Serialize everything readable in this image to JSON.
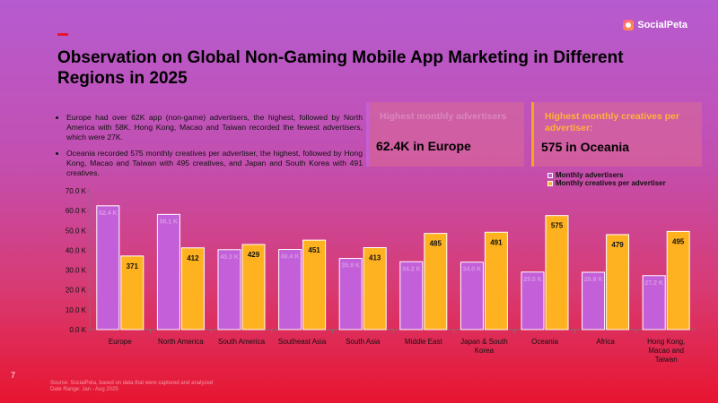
{
  "brand": {
    "name": "SocialPeta"
  },
  "title": "Observation on Global Non-Gaming Mobile App Marketing in Different Regions in 2025",
  "bullets": [
    "Europe had over 62K app (non-game) advertisers, the highest, followed by North America with 58K. Hong Kong, Macao and Taiwan recorded the fewest advertisers, which were 27K.",
    "Oceania recorded 575 monthly creatives per advertiser, the highest, followed by Hong Kong, Macao and Taiwan with 495 creatives, and Japan and South Korea with 491 creatives."
  ],
  "cards": [
    {
      "label": "Highest monthly advertisers",
      "value": "62.4K in Europe"
    },
    {
      "label": "Highest monthly creatives per advertiser:",
      "value": "575 in Oceania"
    }
  ],
  "legend": [
    "Monthly advertisers",
    "Monthly creatives per advertiser"
  ],
  "colors": {
    "advertisers": "#c35fd8",
    "creatives": "#ffb21f"
  },
  "chart_data": {
    "type": "bar",
    "categories": [
      "Europe",
      "North America",
      "South America",
      "Southeast Asia",
      "South Asia",
      "Middle East",
      "Japan & South Korea",
      "Oceania",
      "Africa",
      "Hong Kong, Macao and Taiwan"
    ],
    "category_lines": [
      [
        "Europe"
      ],
      [
        "North America"
      ],
      [
        "South America"
      ],
      [
        "Southeast Asia"
      ],
      [
        "South Asia"
      ],
      [
        "Middle East"
      ],
      [
        "Japan & South",
        "Korea"
      ],
      [
        "Oceania"
      ],
      [
        "Africa"
      ],
      [
        "Hong Kong,",
        "Macao and",
        "Taiwan"
      ]
    ],
    "series": [
      {
        "name": "Monthly advertisers",
        "values": [
          62.4,
          58.1,
          40.3,
          40.4,
          35.9,
          34.2,
          34.0,
          29.0,
          28.9,
          27.2
        ],
        "labels": [
          "62.4 K",
          "58.1 K",
          "40.3 K",
          "40.4 K",
          "35.9 K",
          "34.2 K",
          "34.0 K",
          "29.0 K",
          "28.9 K",
          "27.2 K"
        ]
      },
      {
        "name": "Monthly creatives per advertiser",
        "values": [
          371,
          412,
          429,
          451,
          413,
          485,
          491,
          575,
          479,
          495
        ],
        "labels": [
          "371",
          "412",
          "429",
          "451",
          "413",
          "485",
          "491",
          "575",
          "479",
          "495"
        ]
      }
    ],
    "y_ticks": [
      "0.0 K",
      "10.0 K",
      "20.0 K",
      "30.0 K",
      "40.0 K",
      "50.0 K",
      "60.0 K",
      "70.0 K"
    ],
    "ylim": [
      0,
      70
    ],
    "grid": false,
    "legend_position": "top-right"
  },
  "source": [
    "Source: SocialPeta, based on data that were captured and analyzed",
    "Date Range: Jan - Aug 2025"
  ],
  "page_number": "7"
}
